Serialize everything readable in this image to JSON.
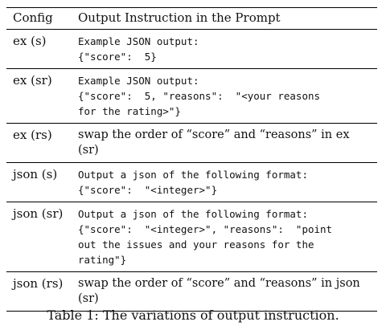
{
  "table": {
    "headers": {
      "config": "Config",
      "instruction": "Output Instruction in the Prompt"
    },
    "rows": [
      {
        "config": "ex (s)",
        "lines": [
          "Example JSON output:",
          "{\"score\":  5}"
        ],
        "style": "mono"
      },
      {
        "config": "ex (sr)",
        "lines": [
          "Example JSON output:",
          "{\"score\":  5, \"reasons\":  \"<your reasons",
          "for the rating>\"}"
        ],
        "style": "mono"
      },
      {
        "config": "ex (rs)",
        "lines": [
          "swap the order of “score” and “reasons” in ex (sr)"
        ],
        "style": "serif"
      },
      {
        "config": "json (s)",
        "lines": [
          "Output a json of the following format:",
          "{\"score\":  \"<integer>\"}"
        ],
        "style": "mono"
      },
      {
        "config": "json (sr)",
        "lines": [
          "Output a json of the following format:",
          "{\"score\":  \"<integer>\", \"reasons\":  \"point",
          "out the issues and your reasons for the",
          "rating\"}"
        ],
        "style": "mono"
      },
      {
        "config": "json (rs)",
        "lines": [
          "swap the order of “score” and “reasons” in json",
          "(sr)"
        ],
        "style": "serif"
      }
    ]
  },
  "caption": "Table 1: The variations of output instruction."
}
